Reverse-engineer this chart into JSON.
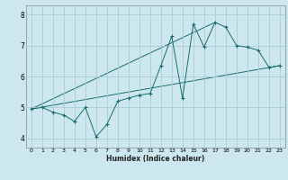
{
  "xlabel": "Humidex (Indice chaleur)",
  "ylabel": "",
  "bg_color": "#cce8ee",
  "grid_color": "#aaccd4",
  "line_color": "#1a6b6b",
  "xlim": [
    -0.5,
    23.5
  ],
  "ylim": [
    3.7,
    8.3
  ],
  "xticks": [
    0,
    1,
    2,
    3,
    4,
    5,
    6,
    7,
    8,
    9,
    10,
    11,
    12,
    13,
    14,
    15,
    16,
    17,
    18,
    19,
    20,
    21,
    22,
    23
  ],
  "yticks": [
    4,
    5,
    6,
    7,
    8
  ],
  "line1_x": [
    0,
    1,
    2,
    3,
    4,
    5,
    6,
    7,
    8,
    9,
    10,
    11,
    12,
    13,
    14,
    15,
    16,
    17,
    18,
    19,
    20,
    21,
    22,
    23
  ],
  "line1_y": [
    4.95,
    5.0,
    4.85,
    4.75,
    4.55,
    5.0,
    4.05,
    4.45,
    5.2,
    5.3,
    5.4,
    5.45,
    6.35,
    7.3,
    5.3,
    7.7,
    6.95,
    7.75,
    7.6,
    7.0,
    6.95,
    6.85,
    6.3,
    6.35
  ],
  "line2_x": [
    0,
    23
  ],
  "line2_y": [
    4.95,
    6.35
  ],
  "line3_x": [
    0,
    17
  ],
  "line3_y": [
    4.95,
    7.75
  ]
}
